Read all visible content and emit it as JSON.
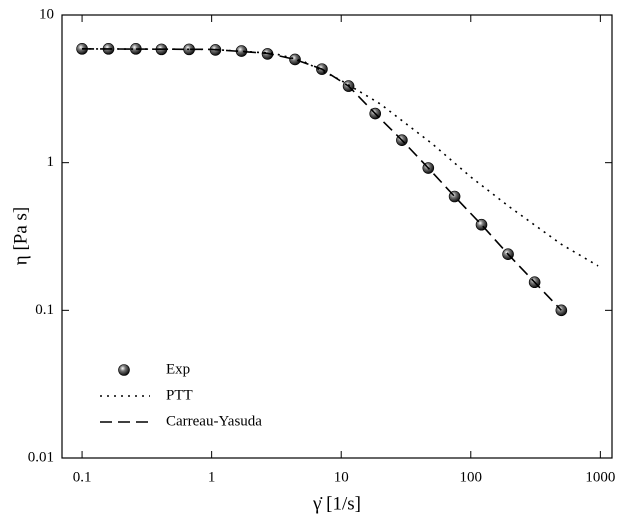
{
  "chart_data": {
    "type": "line",
    "log_x": true,
    "log_y": true,
    "x_label": "γ̇ [1/s]",
    "y_label": "η [Pa s]",
    "xlim": [
      0.07,
      1230
    ],
    "ylim": [
      0.01,
      10
    ],
    "xticks": [
      0.1,
      1,
      10,
      100,
      1000
    ],
    "yticks": [
      0.01,
      0.1,
      1,
      10
    ],
    "legend_position": "lower left",
    "series": [
      {
        "name": "Exp",
        "style": "markers",
        "color": "#000000",
        "x": [
          0.1,
          0.16,
          0.26,
          0.41,
          0.67,
          1.07,
          1.7,
          2.7,
          4.4,
          7.1,
          11.4,
          18.3,
          29.4,
          47,
          75,
          121,
          194,
          311,
          500
        ],
        "values": [
          5.9,
          5.9,
          5.9,
          5.85,
          5.85,
          5.8,
          5.7,
          5.45,
          5.0,
          4.3,
          3.3,
          2.15,
          1.42,
          0.92,
          0.59,
          0.38,
          0.24,
          0.155,
          0.1
        ]
      },
      {
        "name": "PTT",
        "style": "dotted",
        "color": "#000000",
        "x": [
          0.1,
          1,
          3,
          5,
          10,
          20,
          50,
          100,
          200,
          500,
          960
        ],
        "values": [
          5.9,
          5.85,
          5.5,
          4.9,
          3.6,
          2.5,
          1.35,
          0.8,
          0.5,
          0.28,
          0.2
        ]
      },
      {
        "name": "Carreau-Yasuda",
        "style": "dashed",
        "color": "#000000",
        "x": [
          0.1,
          1,
          2.7,
          4.4,
          7.1,
          11.4,
          18.3,
          29.4,
          47,
          75,
          121,
          194,
          311,
          500
        ],
        "values": [
          5.9,
          5.85,
          5.5,
          5.0,
          4.3,
          3.3,
          2.15,
          1.42,
          0.92,
          0.59,
          0.38,
          0.24,
          0.155,
          0.1
        ]
      }
    ]
  }
}
